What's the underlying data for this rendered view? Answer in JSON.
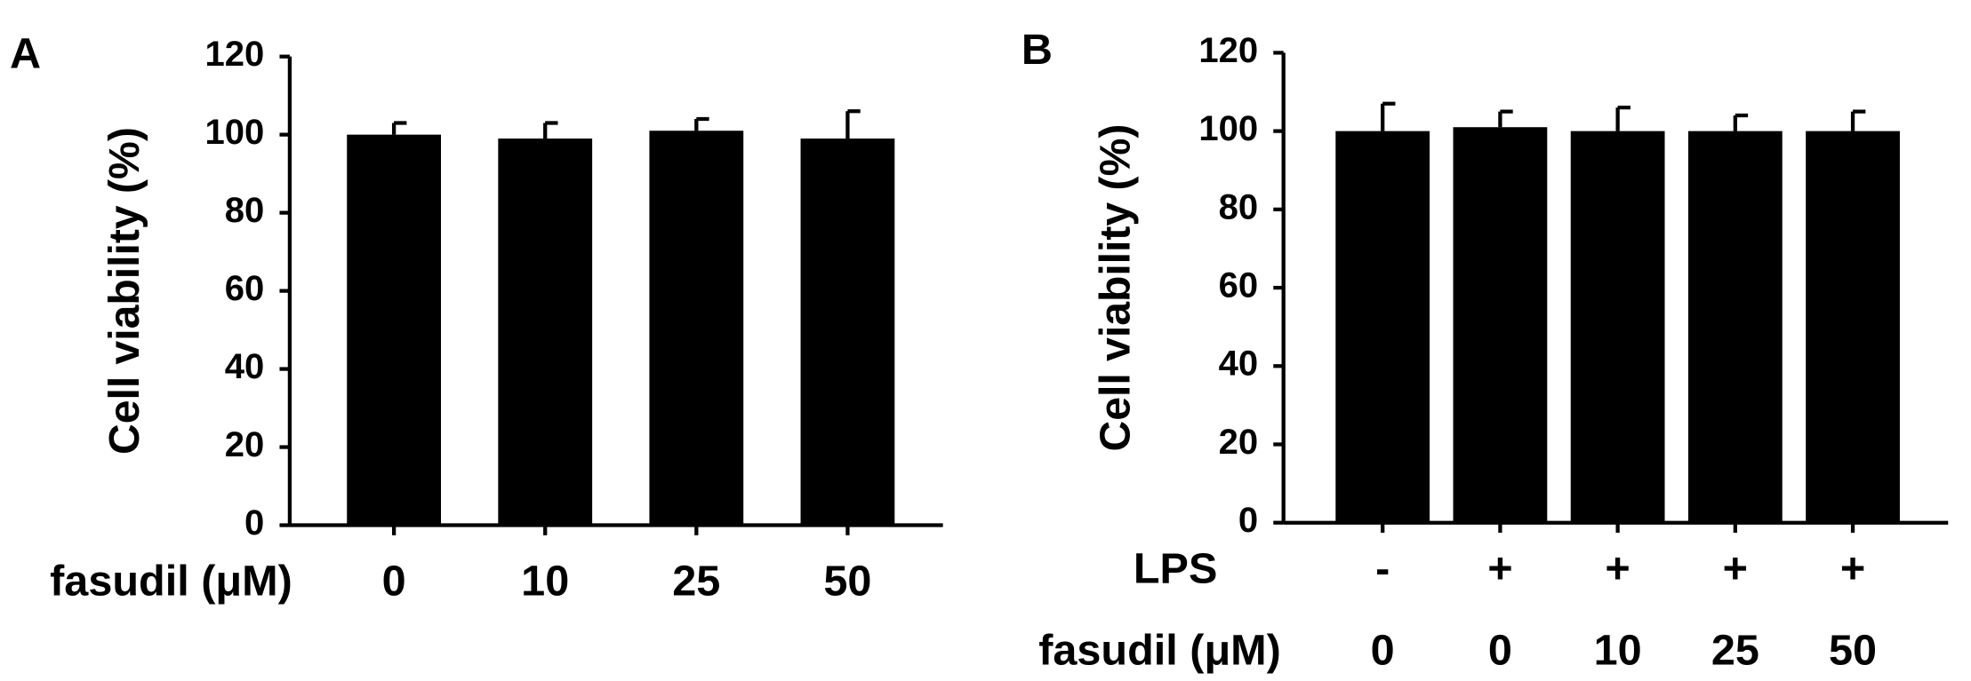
{
  "chart_data": [
    {
      "type": "bar",
      "panel_label": "A",
      "ylabel": "Cell viability (%)",
      "category_label": "fasudil (μM)",
      "categories": [
        "0",
        "10",
        "25",
        "50"
      ],
      "values": [
        100,
        99,
        101,
        99
      ],
      "errors": [
        3,
        4,
        3,
        7
      ],
      "color": "#000000",
      "ylim": [
        0,
        120
      ],
      "yticks": [
        0,
        20,
        40,
        60,
        80,
        100,
        120
      ]
    },
    {
      "type": "bar",
      "panel_label": "B",
      "ylabel": "Cell viability (%)",
      "group_label": "LPS",
      "groups": [
        "-",
        "+",
        "+",
        "+",
        "+"
      ],
      "category_label": "fasudil (μM)",
      "categories": [
        "0",
        "0",
        "10",
        "25",
        "50"
      ],
      "values": [
        100,
        101,
        100,
        100,
        100
      ],
      "errors": [
        7,
        4,
        6,
        4,
        5
      ],
      "color": "#000000",
      "ylim": [
        0,
        120
      ],
      "yticks": [
        0,
        20,
        40,
        60,
        80,
        100,
        120
      ]
    }
  ]
}
